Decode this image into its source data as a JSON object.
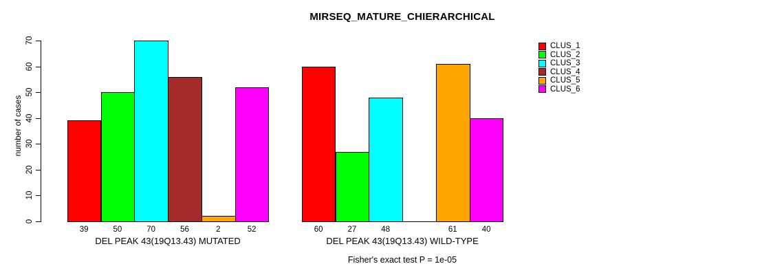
{
  "title": "MIRSEQ_MATURE_CHIERARCHICAL",
  "chart_data": {
    "type": "bar",
    "title": "MIRSEQ_MATURE_CHIERARCHICAL",
    "xlabel": "",
    "ylabel": "number of cases",
    "ylim": [
      0,
      70
    ],
    "yticks": [
      0,
      10,
      20,
      30,
      40,
      50,
      60,
      70
    ],
    "grid": false,
    "annotation": "Fisher's exact test P = 1e-05",
    "legend_position": "right",
    "legend": {
      "entries": [
        {
          "label": "CLUS_1",
          "color": "#FF0000"
        },
        {
          "label": "CLUS_2",
          "color": "#00FF00"
        },
        {
          "label": "CLUS_3",
          "color": "#00FFFF"
        },
        {
          "label": "CLUS_4",
          "color": "#A52A2A"
        },
        {
          "label": "CLUS_5",
          "color": "#FFA500"
        },
        {
          "label": "CLUS_6",
          "color": "#FF00FF"
        }
      ]
    },
    "groups": [
      {
        "label": "DEL PEAK 43(19Q13.43) MUTATED",
        "values": [
          39,
          50,
          70,
          56,
          2,
          52
        ]
      },
      {
        "label": "DEL PEAK 43(19Q13.43) WILD-TYPE",
        "values": [
          60,
          27,
          48,
          null,
          61,
          40
        ]
      }
    ]
  }
}
